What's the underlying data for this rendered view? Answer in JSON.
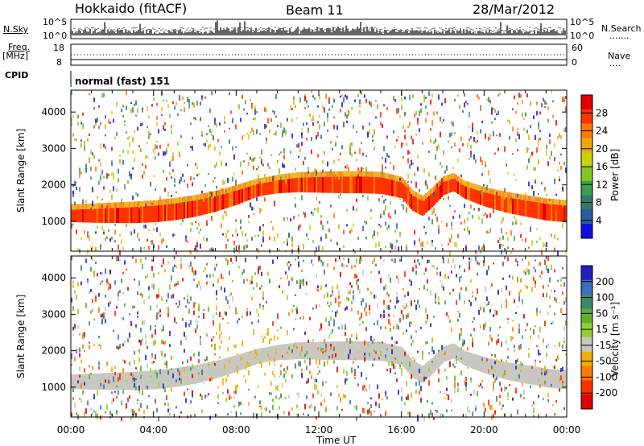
{
  "header": {
    "radar": "Hokkaido (fitACF)",
    "beam": "Beam 11",
    "date": "28/Mar/2012"
  },
  "noise_panel": {
    "left_label": "N.Sky",
    "left_ticks": [
      "10^5",
      "10^0"
    ],
    "right_ticks": [
      "10^5",
      "10^0"
    ],
    "right_label": "N.Search",
    "right_legend_marker": "......."
  },
  "freq_panel": {
    "left_label_1": "Freq.",
    "left_label_2": "[MHz]",
    "left_ticks": [
      "18",
      "8"
    ],
    "right_ticks": [
      "60",
      "0"
    ],
    "right_label": "Nave",
    "right_legend_marker": "...."
  },
  "cpid_panel": {
    "label": "CPID",
    "mode": "normal (fast) 151"
  },
  "chart_data": [
    {
      "type": "heatmap",
      "name": "Power",
      "ylabel": "Slant Range [km]",
      "xlabel": "",
      "ylim": [
        180,
        4600
      ],
      "y_ticks": [
        1000,
        2000,
        3000,
        4000
      ],
      "x_ticks": [
        "00:00",
        "04:00",
        "08:00",
        "12:00",
        "16:00",
        "20:00",
        "00:00"
      ],
      "colorbar_label": "Power [dB]",
      "colorbar_ticks": [
        "28",
        "24",
        "20",
        "16",
        "12",
        "8",
        "4"
      ],
      "colorbar_colors": [
        "#e00000",
        "#ff3300",
        "#ff7a00",
        "#f0a800",
        "#cfcf10",
        "#80c820",
        "#3aa050",
        "#2f7a6a",
        "#2a5aa0",
        "#1010e0"
      ],
      "main_echo_center_km": [
        [
          0,
          1150
        ],
        [
          1,
          1150
        ],
        [
          2,
          1160
        ],
        [
          3,
          1170
        ],
        [
          4,
          1200
        ],
        [
          5,
          1260
        ],
        [
          6,
          1350
        ],
        [
          7,
          1480
        ],
        [
          8,
          1650
        ],
        [
          9,
          1850
        ],
        [
          10,
          1950
        ],
        [
          11,
          2000
        ],
        [
          12,
          2000
        ],
        [
          13,
          2000
        ],
        [
          14,
          2000
        ],
        [
          15,
          1980
        ],
        [
          16,
          1850
        ],
        [
          16.5,
          1500
        ],
        [
          17,
          1350
        ],
        [
          17.5,
          1600
        ],
        [
          18,
          1900
        ],
        [
          18.5,
          2000
        ],
        [
          19,
          1800
        ],
        [
          20,
          1600
        ],
        [
          21,
          1450
        ],
        [
          22,
          1350
        ],
        [
          23,
          1250
        ],
        [
          24,
          1200
        ]
      ]
    },
    {
      "type": "heatmap",
      "name": "Velocity",
      "ylabel": "Slant Range [km]",
      "xlabel": "Time UT",
      "ylim": [
        180,
        4600
      ],
      "y_ticks": [
        1000,
        2000,
        3000,
        4000
      ],
      "x_ticks": [
        "00:00",
        "04:00",
        "08:00",
        "12:00",
        "16:00",
        "20:00",
        "00:00"
      ],
      "colorbar_label": "Velocity [m s⁻¹]",
      "colorbar_ticks": [
        "200",
        "100",
        "50",
        "15",
        "-15",
        "-50",
        "-100",
        "-200"
      ],
      "colorbar_colors": [
        "#2020c0",
        "#3c6ec0",
        "#3a8a70",
        "#60b030",
        "#90d030",
        "#c8c8c0",
        "#f0b000",
        "#ff7a00",
        "#ff3000",
        "#e00000"
      ],
      "ground_scatter_band": "grey"
    }
  ]
}
